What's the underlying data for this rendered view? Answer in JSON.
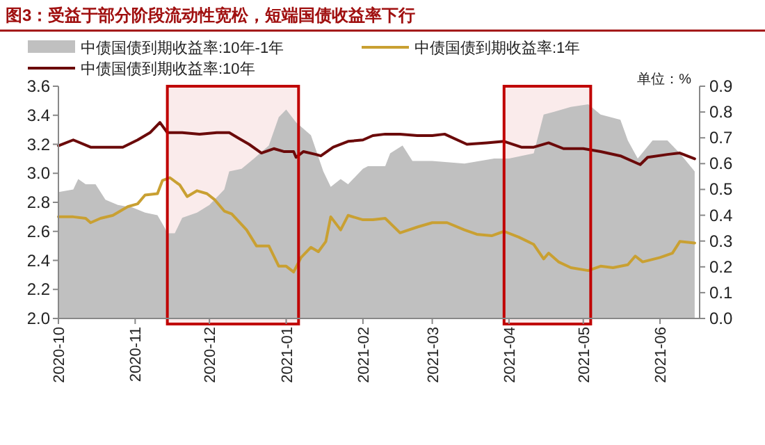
{
  "chart_data": {
    "type": "line",
    "title": "图3：受益于部分阶段流动性宽松，短端国债收益率下行",
    "xlim": [
      "2020-10-01",
      "2021-06-17"
    ],
    "xticks": [
      {
        "value": "2020-10-01",
        "label": "2020-10"
      },
      {
        "value": "2020-11-01",
        "label": "2020-11"
      },
      {
        "value": "2020-12-01",
        "label": "2020-12"
      },
      {
        "value": "2021-01-01",
        "label": "2021-01"
      },
      {
        "value": "2021-02-01",
        "label": "2021-02"
      },
      {
        "value": "2021-03-01",
        "label": "2021-03"
      },
      {
        "value": "2021-04-01",
        "label": "2021-04"
      },
      {
        "value": "2021-05-01",
        "label": "2021-05"
      },
      {
        "value": "2021-06-01",
        "label": "2021-06"
      }
    ],
    "ylim": [
      2.0,
      3.6
    ],
    "yticks": [
      {
        "value": 2,
        "label": "2.0"
      },
      2.2,
      2.4,
      2.6,
      2.8,
      {
        "value": 3,
        "label": "3.0"
      },
      3.2,
      3.4,
      3.6
    ],
    "y2lim": [
      0,
      0.9
    ],
    "y2ticks": [
      {
        "value": 0,
        "label": "0.0"
      },
      0.1,
      0.2,
      0.3,
      0.4,
      0.5,
      0.6,
      0.7,
      0.8,
      0.9
    ],
    "legend": "top",
    "grid": false,
    "annotations": [
      "单位：%"
    ],
    "bands": [
      {
        "axis": "x",
        "from": "2020-11-14",
        "to": "2021-01-06",
        "color": "#c00000"
      },
      {
        "axis": "x",
        "from": "2021-03-30",
        "to": "2021-05-04",
        "color": "#c00000"
      }
    ],
    "series": [
      {
        "name": "中债国债到期收益率:10年-1年",
        "type": "area",
        "axis": "y2",
        "color": "#c0c0c0",
        "x": [
          "2020-10-01",
          "2020-10-07",
          "2020-10-09",
          "2020-10-12",
          "2020-10-16",
          "2020-10-20",
          "2020-10-25",
          "2020-10-31",
          "2020-11-05",
          "2020-11-10",
          "2020-11-13",
          "2020-11-14",
          "2020-11-17",
          "2020-11-20",
          "2020-11-26",
          "2020-12-01",
          "2020-12-07",
          "2020-12-09",
          "2020-12-14",
          "2020-12-19",
          "2020-12-25",
          "2020-12-29",
          "2021-01-01",
          "2021-01-05",
          "2021-01-11",
          "2021-01-16",
          "2021-01-19",
          "2021-01-23",
          "2021-01-26",
          "2021-02-01",
          "2021-02-03",
          "2021-02-07",
          "2021-02-10",
          "2021-02-12",
          "2021-02-17",
          "2021-02-21",
          "2021-03-01",
          "2021-03-14",
          "2021-03-26",
          "2021-04-01",
          "2021-04-06",
          "2021-04-11",
          "2021-04-15",
          "2021-04-19",
          "2021-04-26",
          "2021-05-03",
          "2021-05-08",
          "2021-05-16",
          "2021-05-19",
          "2021-05-23",
          "2021-05-29",
          "2021-06-04",
          "2021-06-09",
          "2021-06-15"
        ],
        "values": [
          0.49,
          0.5,
          0.54,
          0.52,
          0.52,
          0.46,
          0.44,
          0.43,
          0.41,
          0.4,
          0.35,
          0.33,
          0.33,
          0.39,
          0.41,
          0.44,
          0.5,
          0.57,
          0.58,
          0.62,
          0.67,
          0.78,
          0.81,
          0.76,
          0.71,
          0.57,
          0.51,
          0.54,
          0.52,
          0.58,
          0.59,
          0.59,
          0.59,
          0.64,
          0.67,
          0.61,
          0.61,
          0.6,
          0.62,
          0.62,
          0.63,
          0.64,
          0.79,
          0.8,
          0.82,
          0.83,
          0.79,
          0.77,
          0.69,
          0.62,
          0.69,
          0.69,
          0.64,
          0.57
        ]
      },
      {
        "name": "中债国债到期收益率:1年",
        "type": "line",
        "color": "#c9a032",
        "x": [
          "2020-10-01",
          "2020-10-07",
          "2020-10-12",
          "2020-10-14",
          "2020-10-18",
          "2020-10-23",
          "2020-10-29",
          "2020-11-02",
          "2020-11-05",
          "2020-11-10",
          "2020-11-12",
          "2020-11-15",
          "2020-11-19",
          "2020-11-22",
          "2020-11-26",
          "2020-11-30",
          "2020-12-03",
          "2020-12-07",
          "2020-12-10",
          "2020-12-16",
          "2020-12-20",
          "2020-12-25",
          "2020-12-29",
          "2021-01-01",
          "2021-01-04",
          "2021-01-07",
          "2021-01-11",
          "2021-01-14",
          "2021-01-17",
          "2021-01-19",
          "2021-01-23",
          "2021-01-26",
          "2021-02-01",
          "2021-02-05",
          "2021-02-10",
          "2021-02-16",
          "2021-02-23",
          "2021-03-01",
          "2021-03-07",
          "2021-03-14",
          "2021-03-19",
          "2021-03-25",
          "2021-03-30",
          "2021-04-05",
          "2021-04-11",
          "2021-04-15",
          "2021-04-17",
          "2021-04-21",
          "2021-04-26",
          "2021-05-03",
          "2021-05-08",
          "2021-05-13",
          "2021-05-19",
          "2021-05-22",
          "2021-05-25",
          "2021-06-01",
          "2021-06-06",
          "2021-06-09",
          "2021-06-15"
        ],
        "values": [
          2.7,
          2.7,
          2.69,
          2.66,
          2.69,
          2.71,
          2.77,
          2.79,
          2.85,
          2.86,
          2.95,
          2.97,
          2.92,
          2.84,
          2.88,
          2.86,
          2.82,
          2.74,
          2.72,
          2.61,
          2.5,
          2.5,
          2.36,
          2.36,
          2.32,
          2.42,
          2.49,
          2.46,
          2.53,
          2.7,
          2.61,
          2.71,
          2.68,
          2.68,
          2.69,
          2.59,
          2.63,
          2.66,
          2.66,
          2.61,
          2.58,
          2.57,
          2.6,
          2.56,
          2.51,
          2.41,
          2.45,
          2.39,
          2.35,
          2.33,
          2.36,
          2.35,
          2.37,
          2.43,
          2.39,
          2.42,
          2.45,
          2.53,
          2.52
        ]
      },
      {
        "name": "中债国债到期收益率:10年",
        "type": "line",
        "color": "#6b0a0a",
        "x": [
          "2020-10-01",
          "2020-10-07",
          "2020-10-14",
          "2020-10-20",
          "2020-10-27",
          "2020-11-02",
          "2020-11-07",
          "2020-11-11",
          "2020-11-14",
          "2020-11-20",
          "2020-11-27",
          "2020-12-04",
          "2020-12-09",
          "2020-12-13",
          "2020-12-17",
          "2020-12-22",
          "2020-12-27",
          "2020-12-31",
          "2021-01-04",
          "2021-01-05",
          "2021-01-08",
          "2021-01-13",
          "2021-01-15",
          "2021-01-20",
          "2021-01-26",
          "2021-02-01",
          "2021-02-05",
          "2021-02-10",
          "2021-02-16",
          "2021-02-23",
          "2021-03-01",
          "2021-03-06",
          "2021-03-15",
          "2021-03-23",
          "2021-03-30",
          "2021-04-06",
          "2021-04-11",
          "2021-04-17",
          "2021-04-23",
          "2021-05-01",
          "2021-05-08",
          "2021-05-16",
          "2021-05-24",
          "2021-05-27",
          "2021-06-04",
          "2021-06-09",
          "2021-06-15"
        ],
        "values": [
          3.19,
          3.23,
          3.18,
          3.18,
          3.18,
          3.23,
          3.28,
          3.35,
          3.28,
          3.28,
          3.27,
          3.28,
          3.28,
          3.24,
          3.2,
          3.14,
          3.17,
          3.15,
          3.15,
          3.11,
          3.15,
          3.13,
          3.12,
          3.18,
          3.22,
          3.23,
          3.26,
          3.27,
          3.27,
          3.26,
          3.26,
          3.27,
          3.2,
          3.21,
          3.22,
          3.18,
          3.18,
          3.21,
          3.17,
          3.17,
          3.15,
          3.12,
          3.06,
          3.11,
          3.13,
          3.14,
          3.1
        ]
      }
    ]
  }
}
